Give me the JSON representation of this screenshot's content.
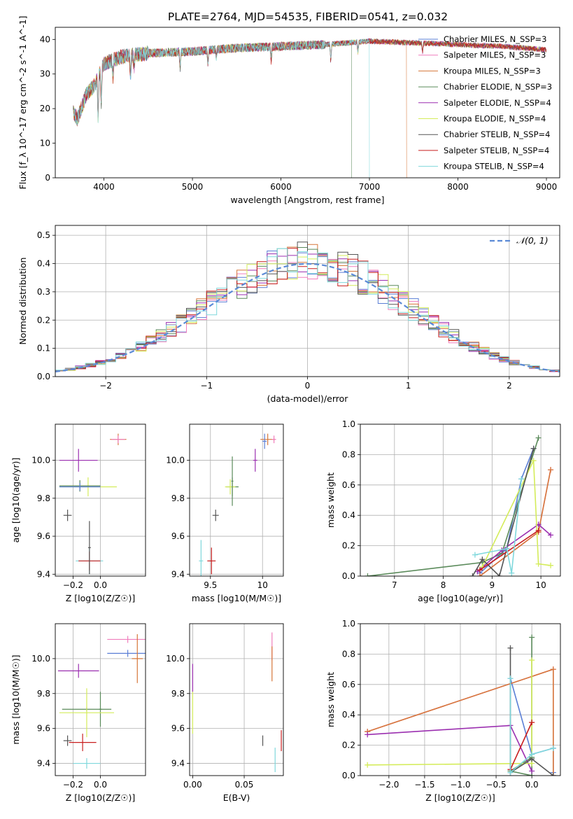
{
  "figure": {
    "title": "PLATE=2764, MJD=54535, FIBERID=0541, z=0.032"
  },
  "chart_data": [
    {
      "id": "spectrum",
      "type": "line",
      "xlabel": "wavelength [Angstrom, rest frame]",
      "ylabel": "Flux [f_λ 10^-17 erg cm^-2 s^-1 A^-1]",
      "xlim": [
        3450,
        9150
      ],
      "ylim": [
        0,
        43.5
      ],
      "xticks": [
        4000,
        5000,
        6000,
        7000,
        8000,
        9000
      ],
      "yticks": [
        0,
        10,
        20,
        30,
        40
      ],
      "grid": false,
      "legend_position": "top-right",
      "series": [
        {
          "name": "Chabrier MILES, N_SSP=3",
          "color": "#5b7fd6"
        },
        {
          "name": "Salpeter MILES, N_SSP=3",
          "color": "#f07fbd"
        },
        {
          "name": "Kroupa MILES, N_SSP=3",
          "color": "#d6773a"
        },
        {
          "name": "Chabrier ELODIE, N_SSP=3",
          "color": "#5a8a5a"
        },
        {
          "name": "Salpeter ELODIE, N_SSP=4",
          "color": "#9b2fb0"
        },
        {
          "name": "Kroupa ELODIE, N_SSP=4",
          "color": "#d4ec5a"
        },
        {
          "name": "Chabrier STELIB, N_SSP=4",
          "color": "#555555"
        },
        {
          "name": "Salpeter STELIB, N_SSP=4",
          "color": "#c81e1e"
        },
        {
          "name": "Kroupa STELIB, N_SSP=4",
          "color": "#7fd8dc"
        }
      ],
      "continuum": {
        "x": [
          3650,
          3700,
          3800,
          3900,
          4000,
          4200,
          4500,
          5000,
          5500,
          6000,
          6500,
          7000,
          7500,
          8000,
          8500,
          9000
        ],
        "y": [
          19,
          17,
          24,
          27,
          33,
          35,
          36,
          36.5,
          37.5,
          38,
          38.5,
          39.5,
          39,
          38.5,
          38,
          37
        ]
      },
      "cutoffs": {
        "Kroupa MILES, N_SSP=3": 7420,
        "Chabrier ELODIE, N_SSP=3": 6800,
        "Kroupa STELIB, N_SSP=4": 7000
      }
    },
    {
      "id": "residuals",
      "type": "bar",
      "xlabel": "(data-model)/error",
      "ylabel": "Normed distribution",
      "xlim": [
        -2.5,
        2.5
      ],
      "ylim": [
        0,
        0.535
      ],
      "xticks": [
        -2,
        -1,
        0,
        1,
        2
      ],
      "yticks": [
        0.0,
        0.1,
        0.2,
        0.3,
        0.4,
        0.5
      ],
      "grid": true,
      "legend_position": "top-right",
      "reference": {
        "name": "𝒩(0, 1)",
        "color": "#5b8ad6"
      },
      "bin_width": 0.1
    },
    {
      "id": "age-vs-Z",
      "type": "scatter",
      "xlabel": "Z [log10(Z/Z☉)]",
      "ylabel": "age [log10(age/yr)]",
      "xlim": [
        -0.33,
        0.33
      ],
      "ylim": [
        9.39,
        10.19
      ],
      "xticks": [
        -0.2,
        0.0
      ],
      "yticks": [
        9.4,
        9.6,
        9.8,
        10.0
      ],
      "grid": true,
      "points": [
        {
          "x": 0.13,
          "y": 10.11,
          "xerr": 0.06,
          "yerr": 0.03,
          "color": "#d6773a"
        },
        {
          "x": 0.13,
          "y": 10.11,
          "xerr": 0.05,
          "yerr": 0.02,
          "color": "#f07fbd"
        },
        {
          "x": -0.16,
          "y": 10.0,
          "xerr": 0.14,
          "yerr": 0.06,
          "color": "#9b2fb0"
        },
        {
          "x": -0.09,
          "y": 9.86,
          "xerr": 0.21,
          "yerr": 0.05,
          "color": "#d4ec5a"
        },
        {
          "x": -0.15,
          "y": 9.865,
          "xerr": 0.15,
          "yerr": 0.03,
          "color": "#5a8a5a"
        },
        {
          "x": -0.15,
          "y": 9.86,
          "xerr": 0.15,
          "yerr": 0.02,
          "color": "#5b7fd6"
        },
        {
          "x": -0.24,
          "y": 9.71,
          "xerr": 0.03,
          "yerr": 0.03,
          "color": "#555555"
        },
        {
          "x": -0.08,
          "y": 9.47,
          "xerr": 0.1,
          "yerr": 0.07,
          "color": "#7fd8dc"
        },
        {
          "x": -0.08,
          "y": 9.47,
          "xerr": 0.08,
          "yerr": 0.05,
          "color": "#c81e1e"
        },
        {
          "x": -0.08,
          "y": 9.54,
          "xerr": 0.01,
          "yerr": 0.14,
          "color": "#555555"
        }
      ]
    },
    {
      "id": "age-vs-mass",
      "type": "scatter",
      "xlabel": "mass [log10(M/M☉)]",
      "ylabel": "",
      "xlim": [
        9.3,
        10.2
      ],
      "ylim": [
        9.39,
        10.19
      ],
      "xticks": [
        9.5,
        10.0
      ],
      "yticks": [
        9.4,
        9.6,
        9.8,
        10.0
      ],
      "grid": true,
      "points": [
        {
          "x": 10.05,
          "y": 10.11,
          "xerr": 0.07,
          "yerr": 0.03,
          "color": "#d6773a"
        },
        {
          "x": 10.11,
          "y": 10.11,
          "xerr": 0.02,
          "yerr": 0.02,
          "color": "#f07fbd"
        },
        {
          "x": 10.02,
          "y": 10.1,
          "xerr": 0.02,
          "yerr": 0.04,
          "color": "#5b7fd6"
        },
        {
          "x": 9.93,
          "y": 10.0,
          "xerr": 0.02,
          "yerr": 0.06,
          "color": "#9b2fb0"
        },
        {
          "x": 9.71,
          "y": 9.86,
          "xerr": 0.06,
          "yerr": 0.05,
          "color": "#5a8a5a"
        },
        {
          "x": 9.69,
          "y": 9.86,
          "xerr": 0.05,
          "yerr": 0.04,
          "color": "#d4ec5a"
        },
        {
          "x": 9.71,
          "y": 9.89,
          "xerr": 0.01,
          "yerr": 0.13,
          "color": "#5a8a5a"
        },
        {
          "x": 9.55,
          "y": 9.71,
          "xerr": 0.03,
          "yerr": 0.03,
          "color": "#555555"
        },
        {
          "x": 9.41,
          "y": 9.47,
          "xerr": 0.02,
          "yerr": 0.11,
          "color": "#7fd8dc"
        },
        {
          "x": 9.51,
          "y": 9.47,
          "xerr": 0.04,
          "yerr": 0.07,
          "color": "#c81e1e"
        }
      ]
    },
    {
      "id": "mass-weight-vs-age",
      "type": "line",
      "xlabel": "age [log10(age/yr)]",
      "ylabel": "mass weight",
      "xlim": [
        6.3,
        10.4
      ],
      "ylim": [
        0,
        1.0
      ],
      "xticks": [
        7,
        8,
        9,
        10
      ],
      "yticks": [
        0.0,
        0.2,
        0.4,
        0.6,
        0.8,
        1.0
      ],
      "grid": true,
      "series": [
        {
          "color": "#5b7fd6",
          "x": [
            8.75,
            9.3,
            9.6,
            9.85
          ],
          "y": [
            0.02,
            0.18,
            0.64,
            0.84
          ]
        },
        {
          "color": "#f07fbd",
          "x": [
            8.75,
            9.95,
            10.2
          ],
          "y": [
            0.0,
            0.29,
            0.7
          ]
        },
        {
          "color": "#d6773a",
          "x": [
            8.75,
            9.95,
            10.2
          ],
          "y": [
            0.0,
            0.29,
            0.7
          ]
        },
        {
          "color": "#5a8a5a",
          "x": [
            6.45,
            8.8,
            9.2,
            9.95
          ],
          "y": [
            0.0,
            0.09,
            0.15,
            0.91
          ]
        },
        {
          "color": "#9b2fb0",
          "x": [
            8.7,
            9.2,
            9.95,
            10.2
          ],
          "y": [
            0.03,
            0.17,
            0.34,
            0.27
          ]
        },
        {
          "color": "#d4ec5a",
          "x": [
            8.8,
            9.85,
            9.95,
            10.2
          ],
          "y": [
            0.06,
            0.76,
            0.08,
            0.07
          ]
        },
        {
          "color": "#555555",
          "x": [
            8.6,
            8.8,
            9.15,
            9.85
          ],
          "y": [
            0.0,
            0.11,
            0.0,
            0.84
          ]
        },
        {
          "color": "#c81e1e",
          "x": [
            8.75,
            9.95
          ],
          "y": [
            0.04,
            0.3
          ]
        },
        {
          "color": "#7fd8dc",
          "x": [
            8.65,
            9.3,
            9.4,
            9.6
          ],
          "y": [
            0.14,
            0.18,
            0.02,
            0.64
          ]
        }
      ]
    },
    {
      "id": "mass-vs-Z",
      "type": "scatter",
      "xlabel": "Z [log10(Z/Z☉)]",
      "ylabel": "mass [log10(M/M☉)]",
      "xlim": [
        -0.33,
        0.33
      ],
      "ylim": [
        9.33,
        10.2
      ],
      "xticks": [
        -0.2,
        0.0
      ],
      "yticks": [
        9.4,
        9.6,
        9.8,
        10.0
      ],
      "grid": true,
      "points": [
        {
          "x": 0.2,
          "y": 10.11,
          "xerr": 0.15,
          "yerr": 0.02,
          "color": "#f07fbd"
        },
        {
          "x": 0.2,
          "y": 10.03,
          "xerr": 0.15,
          "yerr": 0.02,
          "color": "#5b7fd6"
        },
        {
          "x": 0.27,
          "y": 10.0,
          "xerr": 0.04,
          "yerr": 0.14,
          "color": "#d6773a"
        },
        {
          "x": -0.16,
          "y": 9.93,
          "xerr": 0.15,
          "yerr": 0.04,
          "color": "#9b2fb0"
        },
        {
          "x": -0.1,
          "y": 9.71,
          "xerr": 0.18,
          "yerr": 0.01,
          "color": "#5a8a5a"
        },
        {
          "x": 0.0,
          "y": 9.71,
          "xerr": 0.01,
          "yerr": 0.1,
          "color": "#5a8a5a"
        },
        {
          "x": -0.1,
          "y": 9.69,
          "xerr": 0.2,
          "yerr": 0.14,
          "color": "#d4ec5a"
        },
        {
          "x": -0.24,
          "y": 9.53,
          "xerr": 0.03,
          "yerr": 0.03,
          "color": "#555555"
        },
        {
          "x": -0.13,
          "y": 9.52,
          "xerr": 0.1,
          "yerr": 0.05,
          "color": "#c81e1e"
        },
        {
          "x": -0.1,
          "y": 9.4,
          "xerr": 0.1,
          "yerr": 0.03,
          "color": "#7fd8dc"
        }
      ]
    },
    {
      "id": "mass-vs-EBV",
      "type": "scatter",
      "xlabel": "E(B-V)",
      "ylabel": "",
      "xlim": [
        -0.003,
        0.088
      ],
      "ylim": [
        9.33,
        10.2
      ],
      "xticks": [
        0.0,
        0.05
      ],
      "yticks": [
        9.4,
        9.6,
        9.8,
        10.0
      ],
      "grid": true,
      "points": [
        {
          "x": 0.0,
          "y": 9.89,
          "xerr": 0,
          "yerr": 0.08,
          "color": "#9b2fb0"
        },
        {
          "x": 0.0,
          "y": 9.69,
          "xerr": 0,
          "yerr": 0.12,
          "color": "#d4ec5a"
        },
        {
          "x": 0.077,
          "y": 10.07,
          "xerr": 0,
          "yerr": 0.08,
          "color": "#f07fbd"
        },
        {
          "x": 0.077,
          "y": 9.97,
          "xerr": 0,
          "yerr": 0.1,
          "color": "#d6773a"
        },
        {
          "x": 0.068,
          "y": 9.53,
          "xerr": 0,
          "yerr": 0.03,
          "color": "#555555"
        },
        {
          "x": 0.086,
          "y": 9.53,
          "xerr": 0,
          "yerr": 0.06,
          "color": "#c81e1e"
        },
        {
          "x": 0.08,
          "y": 9.42,
          "xerr": 0,
          "yerr": 0.07,
          "color": "#7fd8dc"
        }
      ]
    },
    {
      "id": "mass-weight-vs-Z",
      "type": "line",
      "xlabel": "Z [log10(Z/Z☉)]",
      "ylabel": "mass weight",
      "xlim": [
        -2.4,
        0.4
      ],
      "ylim": [
        0,
        1.0
      ],
      "xticks": [
        -2.0,
        -1.5,
        -1.0,
        -0.5,
        0.0
      ],
      "yticks": [
        0.0,
        0.2,
        0.4,
        0.6,
        0.8,
        1.0
      ],
      "grid": true,
      "series": [
        {
          "color": "#5b7fd6",
          "x": [
            -0.3,
            0.0,
            0.3,
            0.3
          ],
          "y": [
            0.64,
            0.14,
            0.18,
            0.02
          ]
        },
        {
          "color": "#f07fbd",
          "x": [
            -2.3,
            0.3,
            0.3
          ],
          "y": [
            0.29,
            0.7,
            0.0
          ]
        },
        {
          "color": "#d6773a",
          "x": [
            -2.3,
            0.3,
            0.3
          ],
          "y": [
            0.29,
            0.7,
            0.0
          ]
        },
        {
          "color": "#5a8a5a",
          "x": [
            0.0,
            0.0,
            -0.3,
            0.0
          ],
          "y": [
            0.91,
            0.0,
            0.03,
            0.12
          ]
        },
        {
          "color": "#9b2fb0",
          "x": [
            -2.3,
            -0.3,
            0.0
          ],
          "y": [
            0.27,
            0.33,
            0.03
          ]
        },
        {
          "color": "#d4ec5a",
          "x": [
            -2.3,
            0.0,
            0.0
          ],
          "y": [
            0.07,
            0.08,
            0.76
          ]
        },
        {
          "color": "#555555",
          "x": [
            -0.3,
            -0.3,
            0.0,
            0.3
          ],
          "y": [
            0.84,
            0.02,
            0.11,
            0.0
          ]
        },
        {
          "color": "#c81e1e",
          "x": [
            -0.3,
            0.0
          ],
          "y": [
            0.04,
            0.35
          ]
        },
        {
          "color": "#7fd8dc",
          "x": [
            -0.3,
            -0.3,
            0.0,
            0.3
          ],
          "y": [
            0.64,
            0.02,
            0.14,
            0.18
          ]
        }
      ]
    }
  ]
}
